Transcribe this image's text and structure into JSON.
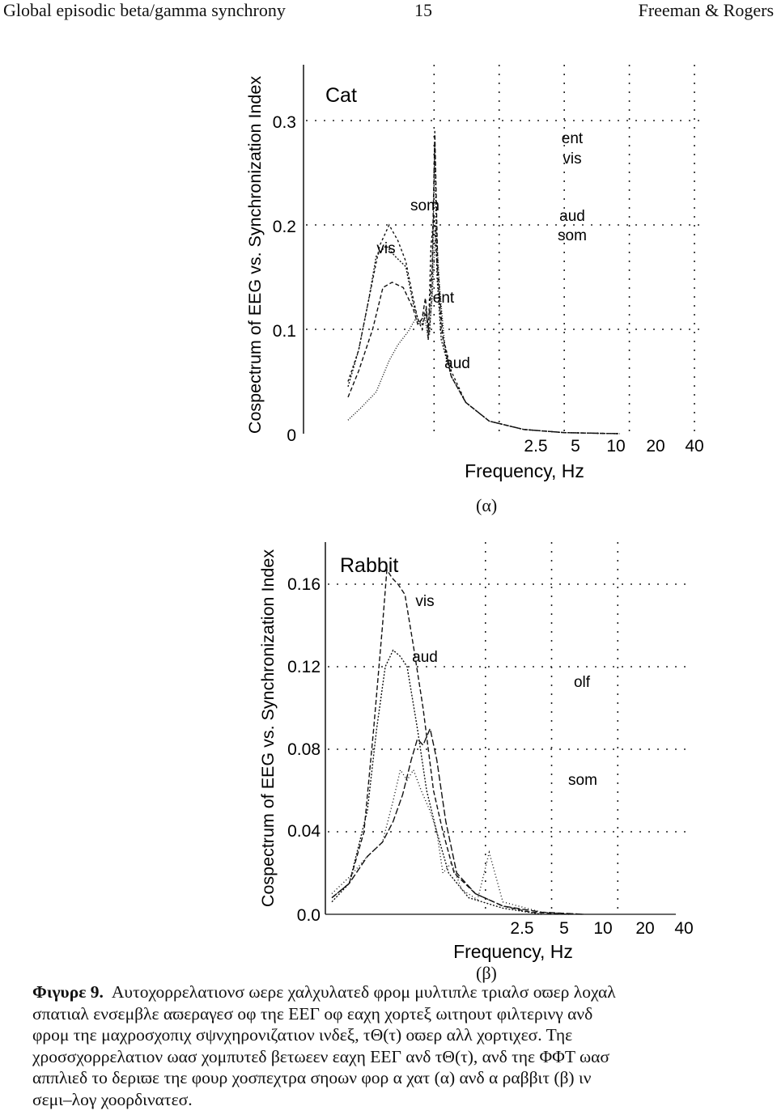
{
  "header": {
    "left": "Global episodic beta/gamma synchrony",
    "page_number": "15",
    "right": "Freeman & Rogers"
  },
  "figure": {
    "panel_a_label": "(α)",
    "panel_b_label": "(β)"
  },
  "caption": {
    "label": "Φιγυρε 9.",
    "lines": [
      "Αυτοχορρελατιονσ ωερε χαλχυλατεδ φρομ μυλτιπλε τριαλσ οϖερ λοχαλ",
      "σπατιαλ ενσεμβλε αϖεραγεσ οφ τηε ΕΕΓ οφ εαχη χορτεξ ωιτηουτ φιλτερινγ ανδ",
      "φρομ τηε μαχροσχοπιχ σψνχηρονιζατιον ινδεξ, τΘ(τ) οϖερ αλλ χορτιχεσ. Τηε",
      "χροσσχορρελατιον ωασ χομπυτεδ βετωεεν εαχη ΕΕΓ ανδ τΘ(τ), ανδ τηε ΦΦΤ ωασ",
      "αππλιεδ το δεριϖε τηε φουρ χοσπεχτρα σηοων φορ α χατ (α) ανδ α ραββιτ (β) ιν",
      "σεμι–λογ χοορδινατεσ."
    ]
  },
  "chart_data": [
    {
      "type": "line",
      "title": "Cat",
      "xlabel": "Frequency, Hz",
      "ylabel": "Cospectrum of EEG vs. Synchronization Index",
      "x_scale": "log",
      "x_ticks": [
        "2.5",
        "5",
        "10",
        "20",
        "40"
      ],
      "y_ticks": [
        "0",
        "0.1",
        "0.2",
        "0.3"
      ],
      "ylim": [
        0,
        0.3
      ],
      "grid": true,
      "series": [
        {
          "name": "som",
          "dash": "3,3",
          "points": [
            [
              1.0,
              0.05
            ],
            [
              1.12,
              0.08
            ],
            [
              1.28,
              0.14
            ],
            [
              1.4,
              0.18
            ],
            [
              1.55,
              0.2
            ],
            [
              1.7,
              0.185
            ],
            [
              1.85,
              0.165
            ],
            [
              2.0,
              0.13
            ],
            [
              2.1,
              0.11
            ],
            [
              2.2,
              0.1
            ],
            [
              2.3,
              0.12
            ],
            [
              2.35,
              0.09
            ],
            [
              2.42,
              0.18
            ],
            [
              2.5,
              0.21
            ],
            [
              2.58,
              0.16
            ],
            [
              2.7,
              0.1
            ],
            [
              3.0,
              0.06
            ],
            [
              3.5,
              0.03
            ],
            [
              4.5,
              0.012
            ],
            [
              6.5,
              0.004
            ],
            [
              10,
              0.001
            ],
            [
              18,
              0
            ]
          ]
        },
        {
          "name": "vis",
          "dash": "2,2",
          "points": [
            [
              1.0,
              0.045
            ],
            [
              1.12,
              0.08
            ],
            [
              1.25,
              0.13
            ],
            [
              1.35,
              0.17
            ],
            [
              1.5,
              0.18
            ],
            [
              1.65,
              0.17
            ],
            [
              1.85,
              0.16
            ],
            [
              2.0,
              0.125
            ],
            [
              2.1,
              0.11
            ],
            [
              2.2,
              0.105
            ],
            [
              2.3,
              0.115
            ],
            [
              2.38,
              0.095
            ],
            [
              2.45,
              0.14
            ],
            [
              2.52,
              0.28
            ],
            [
              2.58,
              0.15
            ],
            [
              2.7,
              0.09
            ],
            [
              3.0,
              0.055
            ],
            [
              3.5,
              0.03
            ],
            [
              4.5,
              0.012
            ],
            [
              6.5,
              0.004
            ],
            [
              10,
              0.001
            ],
            [
              18,
              0
            ]
          ]
        },
        {
          "name": "ent",
          "dash": "5,3",
          "points": [
            [
              1.0,
              0.035
            ],
            [
              1.12,
              0.06
            ],
            [
              1.3,
              0.1
            ],
            [
              1.45,
              0.14
            ],
            [
              1.6,
              0.145
            ],
            [
              1.8,
              0.14
            ],
            [
              2.0,
              0.12
            ],
            [
              2.1,
              0.105
            ],
            [
              2.2,
              0.11
            ],
            [
              2.28,
              0.13
            ],
            [
              2.35,
              0.1
            ],
            [
              2.45,
              0.16
            ],
            [
              2.52,
              0.29
            ],
            [
              2.6,
              0.16
            ],
            [
              2.75,
              0.09
            ],
            [
              3.0,
              0.055
            ],
            [
              3.5,
              0.03
            ],
            [
              4.5,
              0.012
            ],
            [
              6.5,
              0.004
            ],
            [
              10,
              0.001
            ],
            [
              18,
              0
            ]
          ]
        },
        {
          "name": "aud",
          "dash": "1,2",
          "points": [
            [
              1.0,
              0.013
            ],
            [
              1.15,
              0.025
            ],
            [
              1.35,
              0.04
            ],
            [
              1.55,
              0.07
            ],
            [
              1.7,
              0.085
            ],
            [
              1.9,
              0.098
            ],
            [
              2.05,
              0.11
            ],
            [
              2.15,
              0.105
            ],
            [
              2.25,
              0.115
            ],
            [
              2.35,
              0.09
            ],
            [
              2.45,
              0.13
            ],
            [
              2.55,
              0.2
            ],
            [
              2.65,
              0.14
            ],
            [
              2.8,
              0.085
            ],
            [
              3.0,
              0.055
            ],
            [
              3.5,
              0.03
            ],
            [
              4.5,
              0.012
            ],
            [
              6.5,
              0.004
            ],
            [
              10,
              0.001
            ],
            [
              18,
              0
            ]
          ]
        }
      ],
      "annotations": [
        "som",
        "vis",
        "ent",
        "aud",
        "ent",
        "vis",
        "aud",
        "som"
      ]
    },
    {
      "type": "line",
      "title": "Rabbit",
      "xlabel": "Frequency, Hz",
      "ylabel": "Cospectrum of EEG vs. Synchronization Index",
      "x_scale": "log",
      "x_ticks": [
        "2.5",
        "5",
        "10",
        "20",
        "40"
      ],
      "y_ticks": [
        "0.0",
        "0.04",
        "0.08",
        "0.12",
        "0.16"
      ],
      "ylim": [
        0,
        0.16
      ],
      "grid": true,
      "series": [
        {
          "name": "vis",
          "dash": "6,3",
          "points": [
            [
              1.0,
              0.008
            ],
            [
              1.2,
              0.015
            ],
            [
              1.4,
              0.04
            ],
            [
              1.55,
              0.09
            ],
            [
              1.7,
              0.14
            ],
            [
              1.78,
              0.167
            ],
            [
              1.88,
              0.163
            ],
            [
              2.0,
              0.16
            ],
            [
              2.15,
              0.155
            ],
            [
              2.35,
              0.13
            ],
            [
              2.6,
              0.1
            ],
            [
              2.9,
              0.06
            ],
            [
              3.2,
              0.04
            ],
            [
              3.6,
              0.02
            ],
            [
              4.5,
              0.01
            ],
            [
              6,
              0.004
            ],
            [
              8,
              0.001
            ],
            [
              12,
              0
            ]
          ]
        },
        {
          "name": "aud",
          "dash": "2,2",
          "points": [
            [
              1.0,
              0.006
            ],
            [
              1.2,
              0.015
            ],
            [
              1.45,
              0.05
            ],
            [
              1.6,
              0.09
            ],
            [
              1.75,
              0.12
            ],
            [
              1.9,
              0.128
            ],
            [
              2.05,
              0.125
            ],
            [
              2.2,
              0.12
            ],
            [
              2.45,
              0.09
            ],
            [
              2.7,
              0.06
            ],
            [
              3.0,
              0.04
            ],
            [
              3.4,
              0.02
            ],
            [
              4.2,
              0.008
            ],
            [
              6,
              0.003
            ],
            [
              9,
              0
            ]
          ]
        },
        {
          "name": "olf",
          "dash": "8,3",
          "points": [
            [
              1.0,
              0.008
            ],
            [
              1.2,
              0.015
            ],
            [
              1.45,
              0.028
            ],
            [
              1.7,
              0.035
            ],
            [
              1.9,
              0.045
            ],
            [
              2.1,
              0.058
            ],
            [
              2.3,
              0.075
            ],
            [
              2.45,
              0.085
            ],
            [
              2.6,
              0.082
            ],
            [
              2.8,
              0.09
            ],
            [
              3.0,
              0.075
            ],
            [
              3.3,
              0.045
            ],
            [
              3.7,
              0.02
            ],
            [
              4.5,
              0.01
            ],
            [
              6,
              0.004
            ],
            [
              9,
              0.001
            ],
            [
              14,
              0
            ]
          ]
        },
        {
          "name": "som",
          "dash": "1,3",
          "points": [
            [
              1.0,
              0.01
            ],
            [
              1.2,
              0.018
            ],
            [
              1.45,
              0.028
            ],
            [
              1.7,
              0.035
            ],
            [
              1.9,
              0.055
            ],
            [
              2.05,
              0.07
            ],
            [
              2.2,
              0.065
            ],
            [
              2.35,
              0.07
            ],
            [
              2.55,
              0.06
            ],
            [
              2.8,
              0.05
            ],
            [
              3.0,
              0.04
            ],
            [
              3.2,
              0.02
            ],
            [
              3.5,
              0.025
            ],
            [
              3.9,
              0.012
            ],
            [
              4.6,
              0.007
            ],
            [
              5.2,
              0.03
            ],
            [
              6,
              0.006
            ],
            [
              9,
              0.001
            ],
            [
              14,
              0
            ]
          ]
        }
      ],
      "annotations": [
        "vis",
        "aud",
        "olf",
        "som"
      ]
    }
  ]
}
